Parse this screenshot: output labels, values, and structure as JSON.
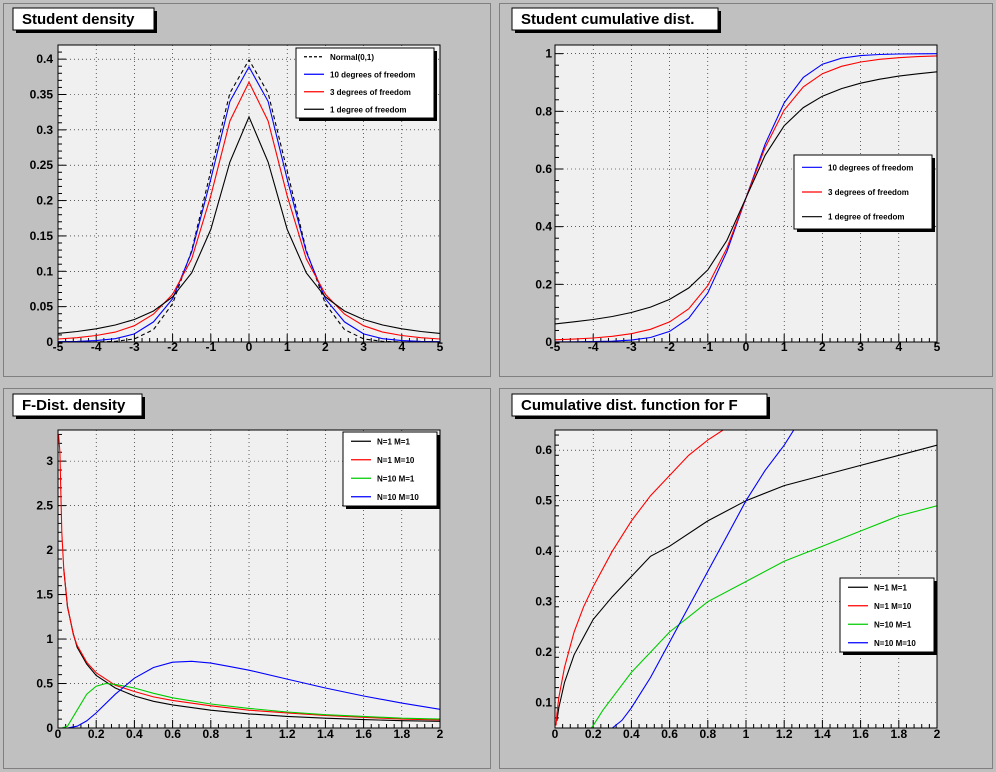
{
  "chart_data": [
    {
      "type": "line",
      "title": "Student density",
      "xlim": [
        -5,
        5
      ],
      "ylim": [
        0,
        0.42
      ],
      "xticks": [
        "-5",
        "-4",
        "-3",
        "-2",
        "-1",
        "0",
        "1",
        "2",
        "3",
        "4",
        "5"
      ],
      "yticks": [
        "0",
        "0.05",
        "0.1",
        "0.15",
        "0.2",
        "0.25",
        "0.3",
        "0.35",
        "0.4"
      ],
      "grid": true,
      "legend_position": "top-right",
      "series": [
        {
          "name": "Normal(0,1)",
          "color": "#000000",
          "dash": true,
          "x": [
            -5,
            -4.5,
            -4,
            -3.5,
            -3,
            -2.5,
            -2,
            -1.5,
            -1,
            -0.5,
            0,
            0.5,
            1,
            1.5,
            2,
            2.5,
            3,
            3.5,
            4,
            4.5,
            5
          ],
          "y": [
            0.0,
            0.0,
            0.0001,
            0.0009,
            0.0044,
            0.0175,
            0.054,
            0.1295,
            0.242,
            0.3521,
            0.3989,
            0.3521,
            0.242,
            0.1295,
            0.054,
            0.0175,
            0.0044,
            0.0009,
            0.0001,
            0.0,
            0.0
          ]
        },
        {
          "name": "10 degrees of freedom",
          "color": "#0000ff",
          "dash": false,
          "x": [
            -5,
            -4.5,
            -4,
            -3.5,
            -3,
            -2.5,
            -2,
            -1.5,
            -1,
            -0.5,
            0,
            0.5,
            1,
            1.5,
            2,
            2.5,
            3,
            3.5,
            4,
            4.5,
            5
          ],
          "y": [
            0.0004,
            0.0009,
            0.002,
            0.0046,
            0.0114,
            0.0284,
            0.0611,
            0.1274,
            0.2304,
            0.3402,
            0.3891,
            0.3402,
            0.2304,
            0.1274,
            0.0611,
            0.0284,
            0.0114,
            0.0046,
            0.002,
            0.0009,
            0.0004
          ]
        },
        {
          "name": "3 degrees of freedom",
          "color": "#ff0000",
          "dash": false,
          "x": [
            -5,
            -4.5,
            -4,
            -3.5,
            -3,
            -2.5,
            -2,
            -1.5,
            -1,
            -0.5,
            0,
            0.5,
            1,
            1.5,
            2,
            2.5,
            3,
            3.5,
            4,
            4.5,
            5
          ],
          "y": [
            0.0042,
            0.0061,
            0.0092,
            0.014,
            0.023,
            0.0395,
            0.0675,
            0.1175,
            0.2067,
            0.3125,
            0.3676,
            0.3125,
            0.2067,
            0.1175,
            0.0675,
            0.0395,
            0.023,
            0.014,
            0.0092,
            0.0061,
            0.0042
          ]
        },
        {
          "name": "1 degree of freedom",
          "color": "#000000",
          "dash": false,
          "x": [
            -5,
            -4.5,
            -4,
            -3.5,
            -3,
            -2.5,
            -2,
            -1.5,
            -1,
            -0.5,
            0,
            0.5,
            1,
            1.5,
            2,
            2.5,
            3,
            3.5,
            4,
            4.5,
            5
          ],
          "y": [
            0.0122,
            0.0149,
            0.0187,
            0.0241,
            0.0318,
            0.0439,
            0.0637,
            0.0979,
            0.1592,
            0.2546,
            0.3183,
            0.2546,
            0.1592,
            0.0979,
            0.0637,
            0.0439,
            0.0318,
            0.0241,
            0.0187,
            0.0149,
            0.0122
          ]
        }
      ]
    },
    {
      "type": "line",
      "title": "Student cumulative dist.",
      "xlim": [
        -5,
        5
      ],
      "ylim": [
        0,
        1.03
      ],
      "xticks": [
        "-5",
        "-4",
        "-3",
        "-2",
        "-1",
        "0",
        "1",
        "2",
        "3",
        "4",
        "5"
      ],
      "yticks": [
        "0",
        "0.2",
        "0.4",
        "0.6",
        "0.8",
        "1"
      ],
      "grid": true,
      "legend_position": "middle-right",
      "series": [
        {
          "name": "10 degrees of freedom",
          "color": "#0000ff",
          "dash": false,
          "x": [
            -5,
            -4.5,
            -4,
            -3.5,
            -3,
            -2.5,
            -2,
            -1.5,
            -1,
            -0.5,
            0,
            0.5,
            1,
            1.5,
            2,
            2.5,
            3,
            3.5,
            4,
            4.5,
            5
          ],
          "y": [
            0.0003,
            0.0006,
            0.0013,
            0.0029,
            0.0067,
            0.0157,
            0.0367,
            0.0823,
            0.1704,
            0.3139,
            0.5,
            0.6861,
            0.8296,
            0.9177,
            0.9633,
            0.9843,
            0.9933,
            0.9971,
            0.9987,
            0.9994,
            0.9997
          ]
        },
        {
          "name": "3 degrees of freedom",
          "color": "#ff0000",
          "dash": false,
          "x": [
            -5,
            -4.5,
            -4,
            -3.5,
            -3,
            -2.5,
            -2,
            -1.5,
            -1,
            -0.5,
            0,
            0.5,
            1,
            1.5,
            2,
            2.5,
            3,
            3.5,
            4,
            4.5,
            5
          ],
          "y": [
            0.0077,
            0.0102,
            0.014,
            0.0197,
            0.0288,
            0.0439,
            0.0697,
            0.1153,
            0.1955,
            0.3257,
            0.5,
            0.6743,
            0.8045,
            0.8847,
            0.9303,
            0.9561,
            0.9712,
            0.9803,
            0.986,
            0.9898,
            0.9923
          ]
        },
        {
          "name": "1 degree of freedom",
          "color": "#000000",
          "dash": false,
          "x": [
            -5,
            -4.5,
            -4,
            -3.5,
            -3,
            -2.5,
            -2,
            -1.5,
            -1,
            -0.5,
            0,
            0.5,
            1,
            1.5,
            2,
            2.5,
            3,
            3.5,
            4,
            4.5,
            5
          ],
          "y": [
            0.0628,
            0.0699,
            0.078,
            0.0886,
            0.1024,
            0.1211,
            0.1476,
            0.1872,
            0.25,
            0.3524,
            0.5,
            0.6476,
            0.75,
            0.8128,
            0.8524,
            0.8789,
            0.8976,
            0.9114,
            0.922,
            0.9301,
            0.9372
          ]
        }
      ]
    },
    {
      "type": "line",
      "title": "F-Dist. density",
      "xlim": [
        0,
        2
      ],
      "ylim": [
        0,
        3.35
      ],
      "xticks": [
        "0",
        "0.2",
        "0.4",
        "0.6",
        "0.8",
        "1",
        "1.2",
        "1.4",
        "1.6",
        "1.8",
        "2"
      ],
      "yticks": [
        "0",
        "0.5",
        "1",
        "1.5",
        "2",
        "2.5",
        "3"
      ],
      "grid": true,
      "legend_position": "top-right",
      "series": [
        {
          "name": "N=1 M=1",
          "color": "#000000",
          "dash": false,
          "x": [
            0.03,
            0.05,
            0.08,
            0.1,
            0.15,
            0.2,
            0.3,
            0.4,
            0.5,
            0.6,
            0.8,
            1.0,
            1.2,
            1.4,
            1.6,
            1.8,
            2.0
          ],
          "y": [
            1.79,
            1.36,
            1.06,
            0.91,
            0.72,
            0.59,
            0.45,
            0.36,
            0.3,
            0.26,
            0.2,
            0.159,
            0.13,
            0.11,
            0.094,
            0.082,
            0.075
          ]
        },
        {
          "name": "N=1 M=10",
          "color": "#ff0000",
          "dash": false,
          "x": [
            0.003,
            0.01,
            0.02,
            0.03,
            0.05,
            0.08,
            0.1,
            0.15,
            0.2,
            0.3,
            0.4,
            0.5,
            0.6,
            0.8,
            1.0,
            1.2,
            1.4,
            1.6,
            1.8,
            2.0
          ],
          "y": [
            3.3,
            3.1,
            2.2,
            1.8,
            1.37,
            1.05,
            0.93,
            0.74,
            0.62,
            0.48,
            0.41,
            0.35,
            0.31,
            0.25,
            0.2,
            0.17,
            0.14,
            0.12,
            0.1,
            0.09
          ]
        },
        {
          "name": "N=10 M=1",
          "color": "#00cc00",
          "dash": false,
          "x": [
            0.02,
            0.05,
            0.1,
            0.15,
            0.2,
            0.25,
            0.3,
            0.4,
            0.5,
            0.6,
            0.8,
            1.0,
            1.2,
            1.4,
            1.6,
            1.8,
            2.0
          ],
          "y": [
            0.0,
            0.02,
            0.2,
            0.38,
            0.47,
            0.5,
            0.49,
            0.45,
            0.39,
            0.34,
            0.27,
            0.22,
            0.18,
            0.15,
            0.13,
            0.11,
            0.1
          ]
        },
        {
          "name": "N=10 M=10",
          "color": "#0000ff",
          "dash": false,
          "x": [
            0.05,
            0.1,
            0.15,
            0.2,
            0.3,
            0.4,
            0.5,
            0.6,
            0.7,
            0.8,
            0.9,
            1.0,
            1.2,
            1.4,
            1.6,
            1.8,
            2.0
          ],
          "y": [
            0.0,
            0.02,
            0.08,
            0.17,
            0.38,
            0.56,
            0.68,
            0.74,
            0.75,
            0.73,
            0.69,
            0.65,
            0.55,
            0.45,
            0.36,
            0.28,
            0.21
          ]
        }
      ]
    },
    {
      "type": "line",
      "title": "Cumulative dist. function for F",
      "xlim": [
        0,
        2
      ],
      "ylim": [
        0.05,
        0.64
      ],
      "xticks": [
        "0",
        "0.2",
        "0.4",
        "0.6",
        "0.8",
        "1",
        "1.2",
        "1.4",
        "1.6",
        "1.8",
        "2"
      ],
      "yticks": [
        "0.1",
        "0.2",
        "0.3",
        "0.4",
        "0.5",
        "0.6"
      ],
      "grid": true,
      "legend_position": "bottom-right",
      "series": [
        {
          "name": "N=1 M=1",
          "color": "#000000",
          "dash": false,
          "x": [
            0.01,
            0.02,
            0.05,
            0.1,
            0.15,
            0.2,
            0.3,
            0.4,
            0.5,
            0.6,
            0.8,
            1.0,
            1.2,
            1.4,
            1.6,
            1.8,
            2.0
          ],
          "y": [
            0.064,
            0.09,
            0.14,
            0.195,
            0.23,
            0.265,
            0.31,
            0.35,
            0.39,
            0.41,
            0.46,
            0.5,
            0.53,
            0.55,
            0.57,
            0.59,
            0.61
          ]
        },
        {
          "name": "N=1 M=10",
          "color": "#ff0000",
          "dash": false,
          "x": [
            0.005,
            0.01,
            0.02,
            0.05,
            0.1,
            0.15,
            0.2,
            0.3,
            0.4,
            0.5,
            0.6,
            0.7,
            0.8,
            0.88
          ],
          "y": [
            0.055,
            0.078,
            0.11,
            0.17,
            0.24,
            0.29,
            0.33,
            0.4,
            0.46,
            0.51,
            0.55,
            0.59,
            0.62,
            0.64
          ]
        },
        {
          "name": "N=10 M=1",
          "color": "#00cc00",
          "dash": false,
          "x": [
            0.19,
            0.2,
            0.25,
            0.3,
            0.4,
            0.5,
            0.6,
            0.7,
            0.8,
            1.0,
            1.2,
            1.4,
            1.6,
            1.8,
            2.0
          ],
          "y": [
            0.05,
            0.055,
            0.085,
            0.11,
            0.16,
            0.2,
            0.24,
            0.27,
            0.3,
            0.34,
            0.38,
            0.41,
            0.44,
            0.47,
            0.49
          ]
        },
        {
          "name": "N=10 M=10",
          "color": "#0000ff",
          "dash": false,
          "x": [
            0.3,
            0.35,
            0.4,
            0.5,
            0.6,
            0.7,
            0.8,
            0.9,
            1.0,
            1.1,
            1.2,
            1.25
          ],
          "y": [
            0.05,
            0.065,
            0.09,
            0.15,
            0.22,
            0.29,
            0.36,
            0.43,
            0.5,
            0.56,
            0.61,
            0.64
          ]
        }
      ]
    }
  ]
}
